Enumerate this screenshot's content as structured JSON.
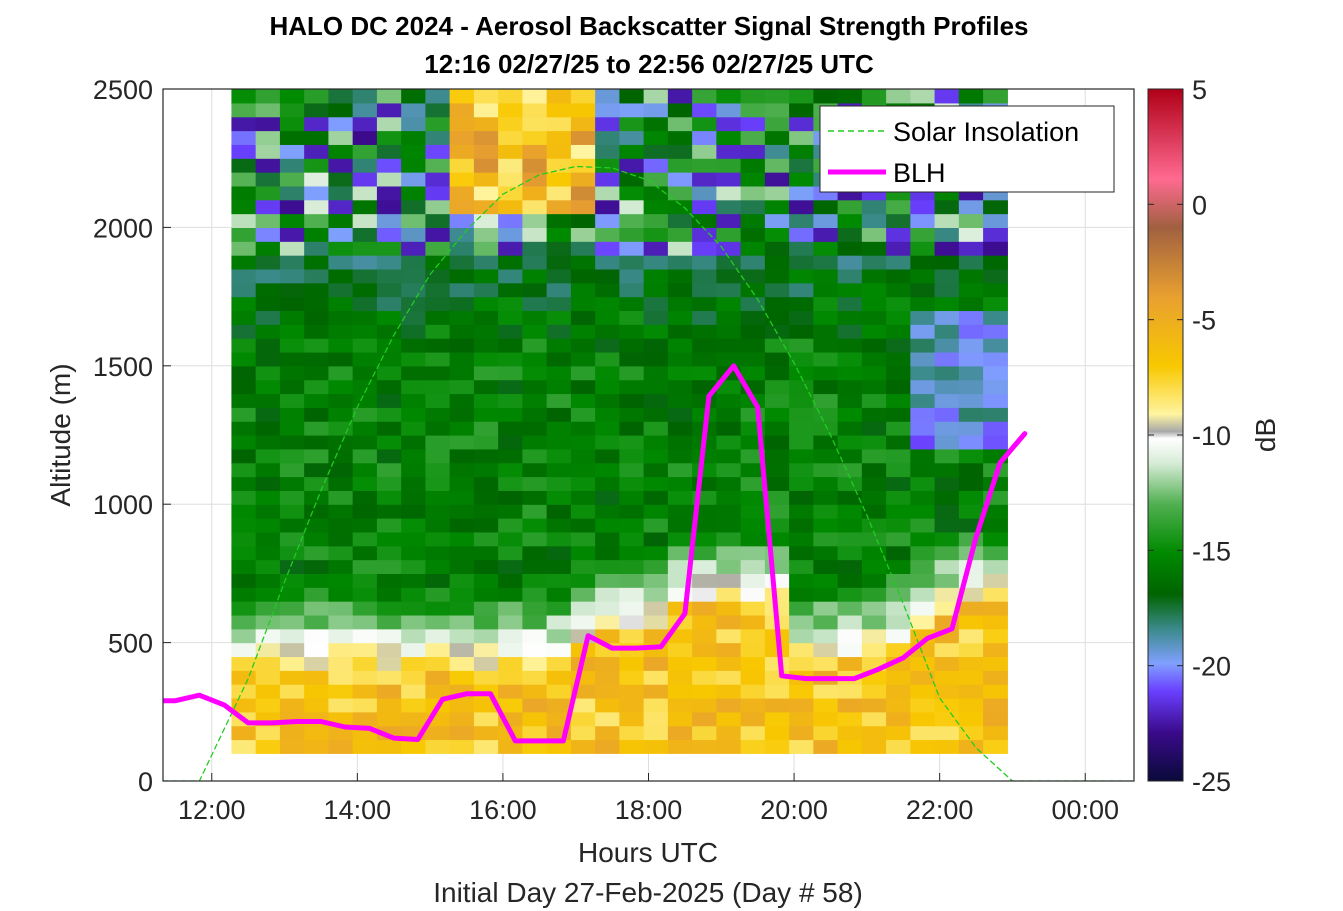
{
  "chart_data": {
    "type": "heatmap",
    "title": "HALO DC 2024 - Aerosol Backscatter Signal Strength Profiles",
    "subtitle": "12:16 02/27/25 to 22:56 02/27/25  UTC",
    "xlabel": "Hours UTC",
    "xlabel2": "Initial Day 27-Feb-2025 (Day # 58)",
    "ylabel": "Altitude (m)",
    "colorbar_label": "dB",
    "x_ticks": [
      "12:00",
      "14:00",
      "16:00",
      "18:00",
      "20:00",
      "22:00",
      "00:00"
    ],
    "x_tick_hours": [
      12,
      14,
      16,
      18,
      20,
      22,
      24
    ],
    "y_ticks": [
      "0",
      "500",
      "1000",
      "1500",
      "2000",
      "2500"
    ],
    "y_tick_values": [
      0,
      500,
      1000,
      1500,
      2000,
      2500
    ],
    "colorbar_ticks": [
      "5",
      "0",
      "-5",
      "-10",
      "-15",
      "-20",
      "-25"
    ],
    "colorbar_tick_values": [
      5,
      0,
      -5,
      -10,
      -15,
      -20,
      -25
    ],
    "xlim_hours": [
      11.33,
      24.67
    ],
    "ylim": [
      0,
      2500
    ],
    "clim": [
      -25,
      5
    ],
    "grid": true,
    "legend_position": "top-right",
    "heatmap": {
      "x_start_hours": 12.27,
      "x_end_hours": 22.93,
      "cell_width_hours": 0.333,
      "y_start_m": 100,
      "y_end_m": 2500,
      "cell_height_m": 50
    },
    "series": [
      {
        "name": "Solar Insolation",
        "style": "dashed",
        "color": "#22cc22",
        "x": [
          11.33,
          11.83,
          12.5,
          13.0,
          13.5,
          14.0,
          14.5,
          15.0,
          15.5,
          16.0,
          16.5,
          17.0,
          17.5,
          18.0,
          18.5,
          19.0,
          19.5,
          20.0,
          20.5,
          21.0,
          21.5,
          22.0,
          22.5,
          23.0,
          24.67
        ],
        "y": [
          0,
          0,
          370,
          720,
          1050,
          1350,
          1610,
          1830,
          1990,
          2120,
          2190,
          2220,
          2215,
          2170,
          2070,
          1930,
          1740,
          1510,
          1250,
          960,
          640,
          300,
          120,
          0,
          0
        ]
      },
      {
        "name": "BLH",
        "style": "solid",
        "color": "#ff00ff",
        "x": [
          11.33,
          11.5,
          11.83,
          12.17,
          12.5,
          12.83,
          13.17,
          13.5,
          13.83,
          14.17,
          14.5,
          14.83,
          15.17,
          15.5,
          15.83,
          16.17,
          16.5,
          16.83,
          17.17,
          17.5,
          17.83,
          18.17,
          18.5,
          18.83,
          19.17,
          19.5,
          19.83,
          20.17,
          20.5,
          20.83,
          21.17,
          21.5,
          21.83,
          22.17,
          22.5,
          22.83,
          23.17
        ],
        "y": [
          290,
          290,
          310,
          275,
          210,
          210,
          215,
          215,
          195,
          190,
          155,
          150,
          295,
          315,
          315,
          145,
          145,
          145,
          525,
          480,
          480,
          485,
          605,
          1390,
          1500,
          1350,
          380,
          370,
          370,
          370,
          405,
          445,
          515,
          550,
          880,
          1150,
          1255
        ]
      }
    ]
  }
}
